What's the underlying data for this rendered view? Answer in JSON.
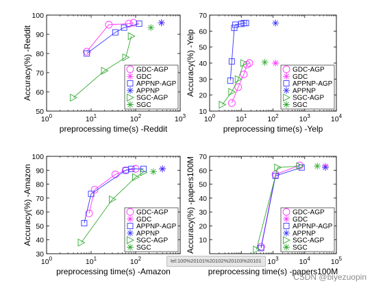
{
  "tooltip_text": "tel:100%20101%20102%20103%20101",
  "watermark": "CSDN @biyezuopin",
  "series_styles": {
    "GDC-AGP": {
      "color": "#ff33ff",
      "marker": "circle",
      "line": true
    },
    "GDC": {
      "color": "#ff33ff",
      "marker": "asterisk",
      "line": false
    },
    "APPNP-AGP": {
      "color": "#3333ff",
      "marker": "square",
      "line": true
    },
    "APPNP": {
      "color": "#3333ff",
      "marker": "asterisk",
      "line": false
    },
    "SGC-AGP": {
      "color": "#33aa33",
      "marker": "triangle",
      "line": true
    },
    "SGC": {
      "color": "#33aa33",
      "marker": "asterisk",
      "line": false
    }
  },
  "chart_data": [
    {
      "type": "line",
      "xlabel": "preprocessing time(s) -Reddit",
      "ylabel": "Accuracy(%) -Reddit",
      "xscale": "log",
      "xlim": [
        1,
        1000
      ],
      "ylim": [
        50,
        100
      ],
      "xticks": [
        1,
        10,
        100,
        1000
      ],
      "xticklabels": [
        "10^0",
        "10^1",
        "10^2",
        "10^3"
      ],
      "yticks": [
        50,
        60,
        70,
        80,
        90,
        100
      ],
      "legend": "lower-right",
      "series": [
        {
          "name": "GDC-AGP",
          "x": [
            8,
            25,
            70,
            90
          ],
          "y": [
            81,
            95,
            95.5,
            96
          ]
        },
        {
          "name": "GDC",
          "x": [
            380
          ],
          "y": [
            96
          ]
        },
        {
          "name": "APPNP-AGP",
          "x": [
            8,
            35,
            55,
            120
          ],
          "y": [
            80,
            91,
            93.5,
            95.5
          ]
        },
        {
          "name": "APPNP",
          "x": [
            380
          ],
          "y": [
            96
          ]
        },
        {
          "name": "SGC-AGP",
          "x": [
            4,
            20,
            60,
            80
          ],
          "y": [
            57,
            71,
            78,
            89
          ]
        },
        {
          "name": "SGC",
          "x": [
            220
          ],
          "y": [
            93.5
          ]
        }
      ]
    },
    {
      "type": "line",
      "xlabel": "preprocessing time(s) -Yelp",
      "ylabel": "Accuracy(%) -Yelp",
      "xscale": "log",
      "xlim": [
        1,
        10000
      ],
      "ylim": [
        10,
        70
      ],
      "xticks": [
        1,
        10,
        100,
        1000,
        10000
      ],
      "xticklabels": [
        "10^0",
        "10^1",
        "10^2",
        "10^3",
        "10^4"
      ],
      "yticks": [
        10,
        20,
        30,
        40,
        50,
        60,
        70
      ],
      "legend": "lower-right",
      "series": [
        {
          "name": "GDC-AGP",
          "x": [
            5,
            8,
            12,
            15,
            18
          ],
          "y": [
            15,
            25,
            33,
            39,
            40
          ]
        },
        {
          "name": "GDC",
          "x": [
            120
          ],
          "y": [
            40
          ]
        },
        {
          "name": "APPNP-AGP",
          "x": [
            4.5,
            5,
            6,
            6.5,
            10,
            12,
            14
          ],
          "y": [
            29,
            41,
            62,
            64,
            64.5,
            65,
            65
          ]
        },
        {
          "name": "APPNP",
          "x": [
            120
          ],
          "y": [
            65
          ]
        },
        {
          "name": "SGC-AGP",
          "x": [
            2.5,
            5,
            8,
            12
          ],
          "y": [
            14,
            22,
            30,
            40
          ]
        },
        {
          "name": "SGC",
          "x": [
            55
          ],
          "y": [
            40.5
          ]
        }
      ]
    },
    {
      "type": "line",
      "xlabel": "preprocessing time(s) -Amazon",
      "ylabel": "Accuracy(%) -Amazon",
      "xscale": "log",
      "xlim": [
        1,
        1000
      ],
      "ylim": [
        30,
        100
      ],
      "xticks": [
        1,
        10,
        100,
        1000
      ],
      "xticklabels": [
        "10^0",
        "10^1",
        "10^2",
        "10^3"
      ],
      "yticks": [
        30,
        40,
        50,
        60,
        70,
        80,
        90,
        100
      ],
      "legend": "lower-right",
      "series": [
        {
          "name": "GDC-AGP",
          "x": [
            9,
            12,
            35,
            60,
            100
          ],
          "y": [
            59,
            76,
            87,
            90,
            91
          ]
        },
        {
          "name": "GDC",
          "x": [
            400
          ],
          "y": [
            91
          ]
        },
        {
          "name": "APPNP-AGP",
          "x": [
            7,
            10,
            60,
            80,
            150
          ],
          "y": [
            52,
            73,
            90,
            91,
            91
          ]
        },
        {
          "name": "APPNP",
          "x": [
            400
          ],
          "y": [
            91
          ]
        },
        {
          "name": "SGC-AGP",
          "x": [
            6,
            30,
            100,
            150
          ],
          "y": [
            38,
            69,
            85,
            88.5
          ]
        },
        {
          "name": "SGC",
          "x": [
            250
          ],
          "y": [
            89
          ]
        }
      ]
    },
    {
      "type": "line",
      "xlabel": "preprocessing time(s) -papers100M",
      "ylabel": "Accuracy(%) -papers100M",
      "xscale": "log",
      "xlim": [
        10,
        100000
      ],
      "ylim": [
        0,
        70
      ],
      "xticks": [
        10,
        100,
        1000,
        10000,
        100000
      ],
      "xticklabels": [
        "10^1",
        "10^2",
        "10^3",
        "10^4",
        "10^5"
      ],
      "yticks": [
        10,
        20,
        30,
        40,
        50,
        60,
        70
      ],
      "legend": "lower-right",
      "series": [
        {
          "name": "GDC-AGP",
          "x": [
            420,
            1200,
            7000
          ],
          "y": [
            5,
            57,
            63.5
          ]
        },
        {
          "name": "GDC",
          "x": [
            45000
          ],
          "y": [
            63
          ]
        },
        {
          "name": "APPNP-AGP",
          "x": [
            420,
            1200,
            8000
          ],
          "y": [
            4,
            56,
            62
          ]
        },
        {
          "name": "APPNP",
          "x": [
            45000
          ],
          "y": [
            62
          ]
        },
        {
          "name": "SGC-AGP",
          "x": [
            300,
            1400,
            7000
          ],
          "y": [
            3,
            62,
            63
          ]
        },
        {
          "name": "SGC",
          "x": [
            25000
          ],
          "y": [
            63
          ]
        }
      ]
    }
  ]
}
